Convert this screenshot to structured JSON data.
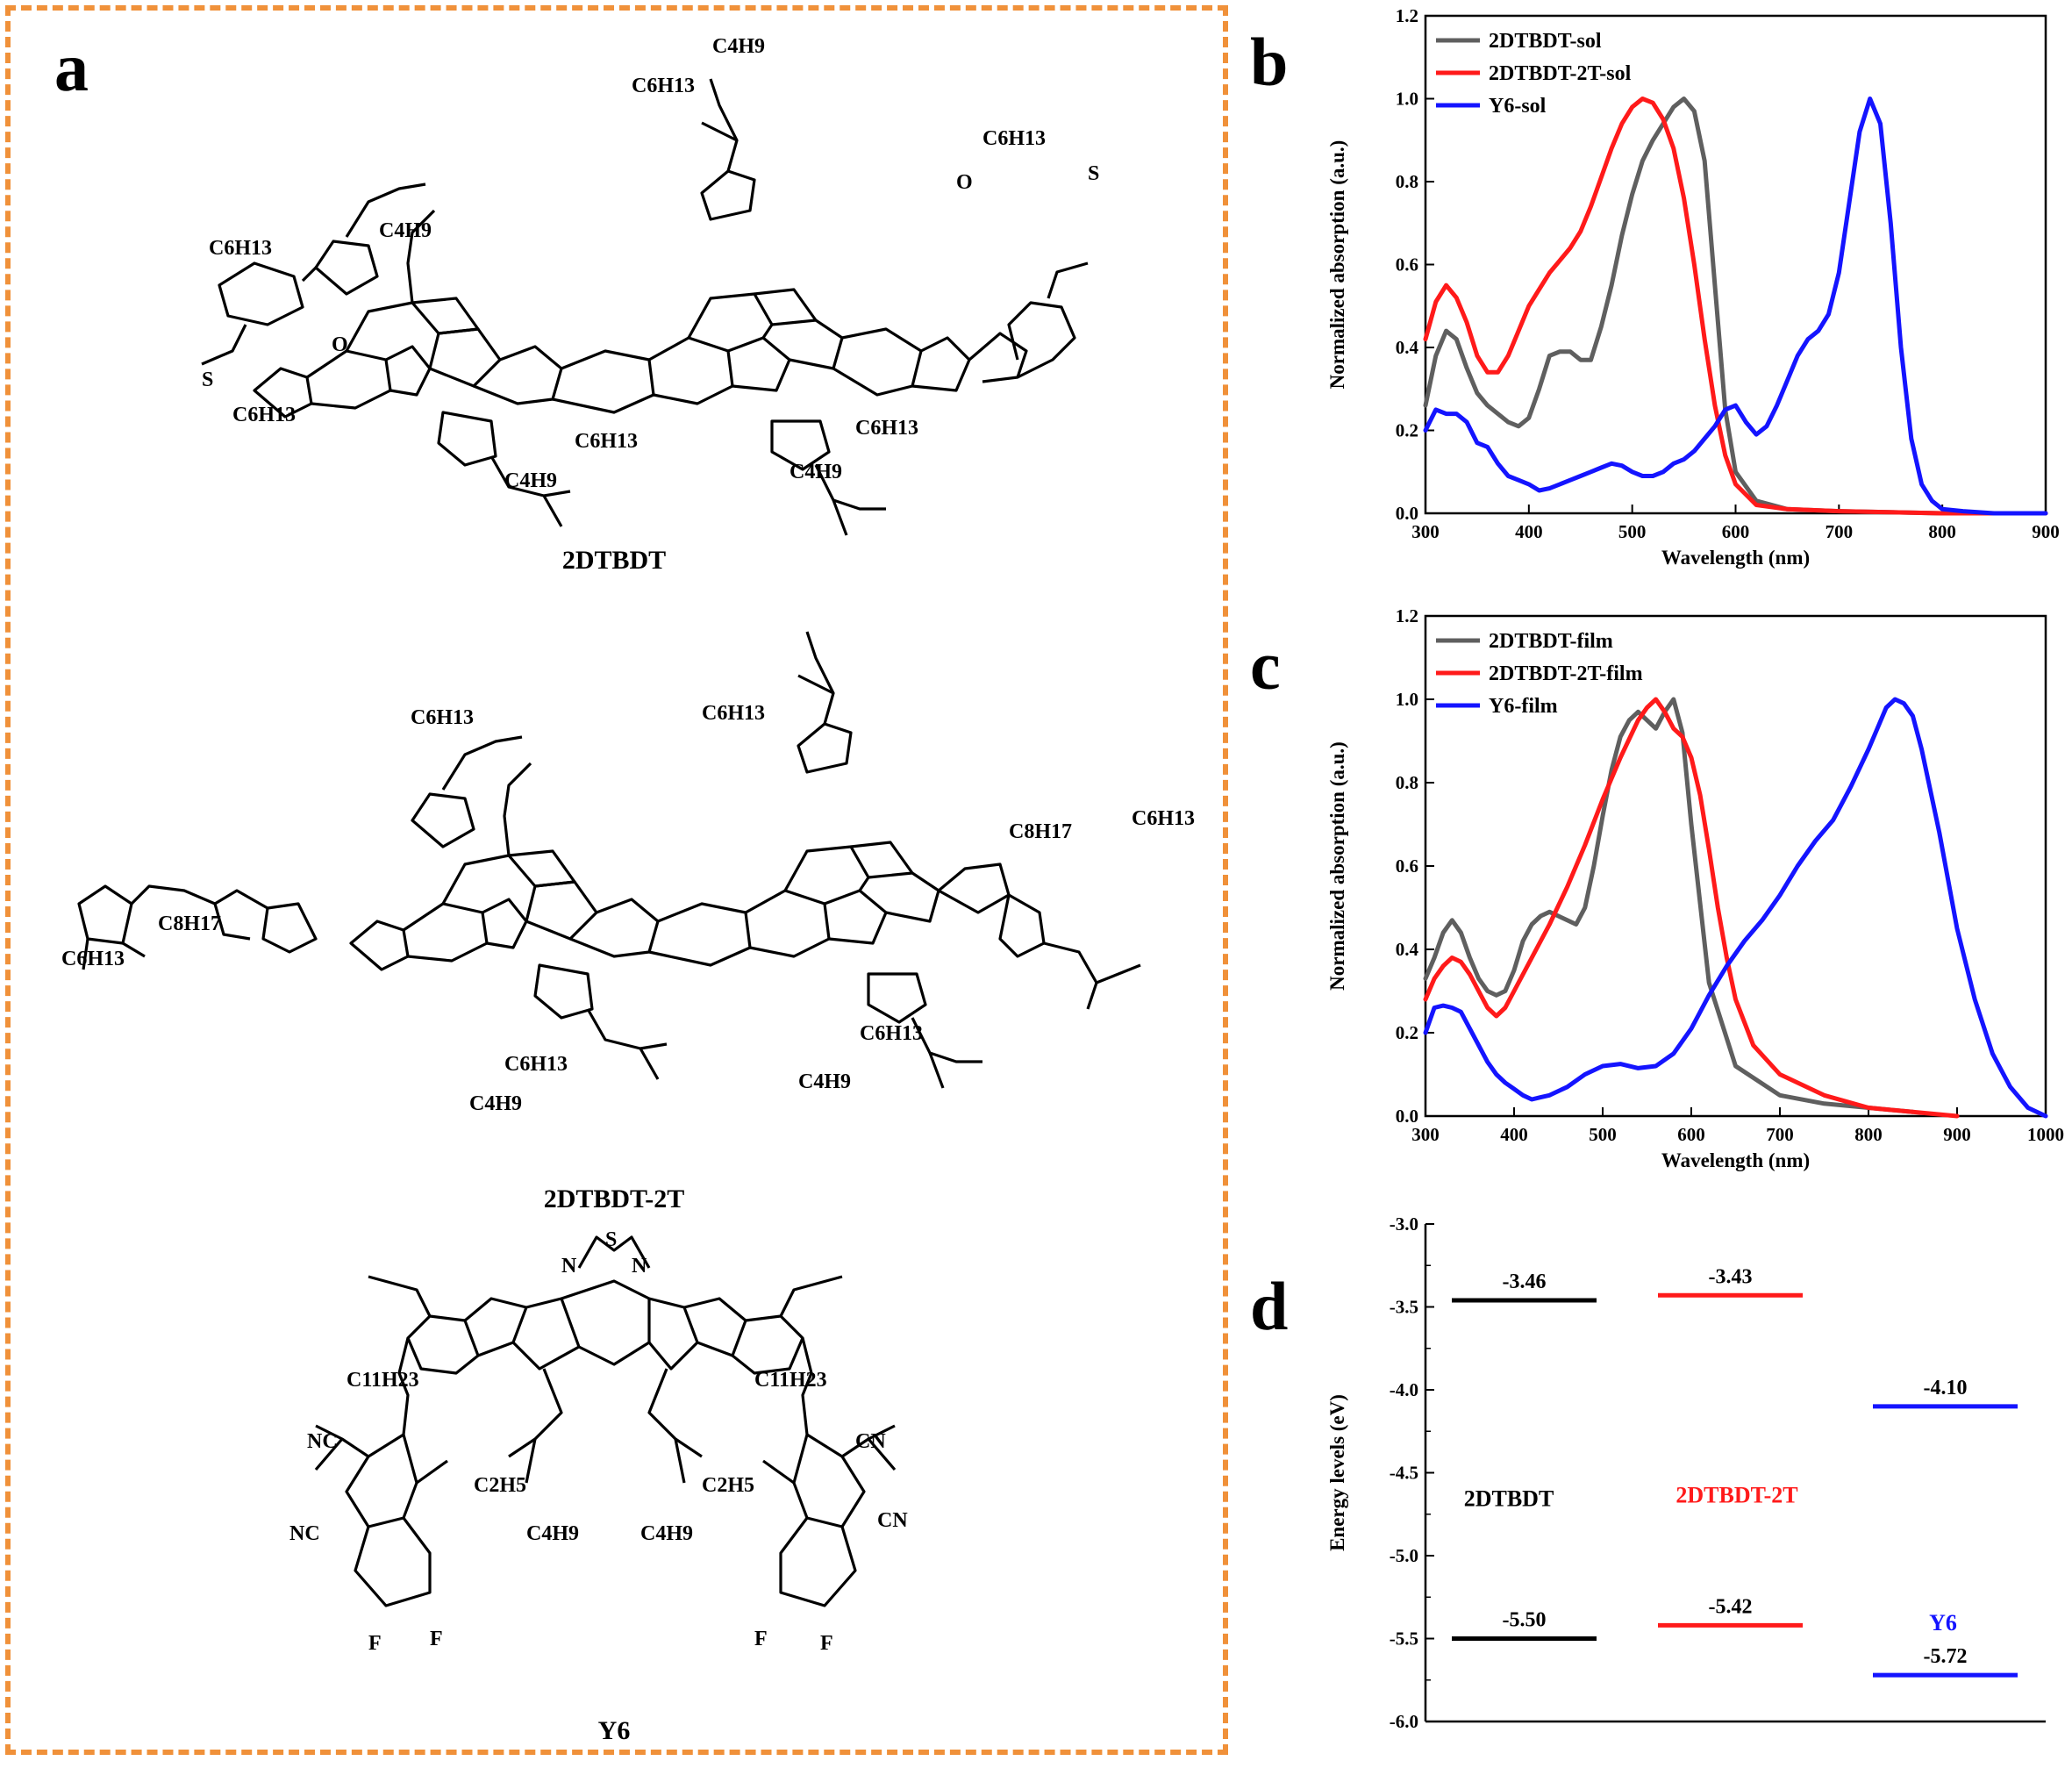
{
  "panel_labels": {
    "a": "a",
    "b": "b",
    "c": "c",
    "d": "d"
  },
  "molecules": {
    "m1": {
      "name": "2DTBDT"
    },
    "m2": {
      "name": "2DTBDT-2T"
    },
    "m3": {
      "name": "Y6"
    }
  },
  "atom_labels": {
    "S": "S",
    "N": "N",
    "O": "O",
    "F": "F",
    "NC": "NC",
    "CN": "CN",
    "C6H13": "C6H13",
    "C4H9": "C4H9",
    "C8H17": "C8H17",
    "C11H23": "C11H23",
    "C2H5": "C2H5"
  },
  "colors": {
    "dash_border": "#F0913A",
    "gray": "#5F5F5F",
    "red": "#FF1A1A",
    "blue": "#1414FF",
    "black": "#000000"
  },
  "chart_data": [
    {
      "type": "line",
      "panel": "b",
      "xlabel": "Wavelength (nm)",
      "ylabel": "Normalized absorption (a.u.)",
      "xlim": [
        300,
        900
      ],
      "ylim": [
        0.0,
        1.2
      ],
      "xticks": [
        300,
        400,
        500,
        600,
        700,
        800,
        900
      ],
      "yticks": [
        "0.0",
        "0.2",
        "0.4",
        "0.6",
        "0.8",
        "1.0",
        "1.2"
      ],
      "legend_position": "top-left",
      "series": [
        {
          "name": "2DTBDT-sol",
          "color": "#5F5F5F",
          "x": [
            300,
            310,
            320,
            330,
            340,
            350,
            360,
            370,
            380,
            390,
            400,
            410,
            420,
            430,
            440,
            450,
            460,
            470,
            480,
            490,
            500,
            510,
            520,
            530,
            540,
            550,
            560,
            570,
            580,
            590,
            600,
            620,
            650,
            700,
            800,
            900
          ],
          "y": [
            0.26,
            0.38,
            0.44,
            0.42,
            0.35,
            0.29,
            0.26,
            0.24,
            0.22,
            0.21,
            0.23,
            0.3,
            0.38,
            0.39,
            0.39,
            0.37,
            0.37,
            0.45,
            0.55,
            0.67,
            0.77,
            0.85,
            0.9,
            0.94,
            0.98,
            1.0,
            0.97,
            0.85,
            0.55,
            0.25,
            0.1,
            0.03,
            0.01,
            0.005,
            0.0,
            0.0
          ]
        },
        {
          "name": "2DTBDT-2T-sol",
          "color": "#FF1A1A",
          "x": [
            300,
            310,
            320,
            330,
            340,
            350,
            360,
            370,
            380,
            390,
            400,
            410,
            420,
            430,
            440,
            450,
            460,
            470,
            480,
            490,
            500,
            510,
            520,
            530,
            540,
            550,
            560,
            570,
            580,
            590,
            600,
            620,
            650,
            700,
            800,
            900
          ],
          "y": [
            0.42,
            0.51,
            0.55,
            0.52,
            0.46,
            0.38,
            0.34,
            0.34,
            0.38,
            0.44,
            0.5,
            0.54,
            0.58,
            0.61,
            0.64,
            0.68,
            0.74,
            0.81,
            0.88,
            0.94,
            0.98,
            1.0,
            0.99,
            0.95,
            0.88,
            0.76,
            0.6,
            0.42,
            0.26,
            0.14,
            0.07,
            0.02,
            0.01,
            0.005,
            0.0,
            0.0
          ]
        },
        {
          "name": "Y6-sol",
          "color": "#1414FF",
          "x": [
            300,
            310,
            320,
            330,
            340,
            350,
            360,
            370,
            380,
            390,
            400,
            410,
            420,
            430,
            440,
            450,
            460,
            470,
            480,
            490,
            500,
            510,
            520,
            530,
            540,
            550,
            560,
            570,
            580,
            590,
            600,
            610,
            620,
            630,
            640,
            650,
            660,
            670,
            680,
            690,
            700,
            710,
            720,
            730,
            740,
            750,
            760,
            770,
            780,
            790,
            800,
            820,
            850,
            900
          ],
          "y": [
            0.2,
            0.25,
            0.24,
            0.24,
            0.22,
            0.17,
            0.16,
            0.12,
            0.09,
            0.08,
            0.07,
            0.055,
            0.06,
            0.07,
            0.08,
            0.09,
            0.1,
            0.11,
            0.12,
            0.115,
            0.1,
            0.09,
            0.09,
            0.1,
            0.12,
            0.13,
            0.15,
            0.18,
            0.21,
            0.25,
            0.26,
            0.22,
            0.19,
            0.21,
            0.26,
            0.32,
            0.38,
            0.42,
            0.44,
            0.48,
            0.58,
            0.75,
            0.92,
            1.0,
            0.94,
            0.7,
            0.4,
            0.18,
            0.07,
            0.03,
            0.01,
            0.005,
            0.0,
            0.0
          ]
        }
      ]
    },
    {
      "type": "line",
      "panel": "c",
      "xlabel": "Wavelength (nm)",
      "ylabel": "Normalized absorption (a.u.)",
      "xlim": [
        300,
        1000
      ],
      "ylim": [
        0.0,
        1.2
      ],
      "xticks": [
        300,
        400,
        500,
        600,
        700,
        800,
        900,
        1000
      ],
      "yticks": [
        "0.0",
        "0.2",
        "0.4",
        "0.6",
        "0.8",
        "1.0",
        "1.2"
      ],
      "legend_position": "top-left",
      "series": [
        {
          "name": "2DTBDT-film",
          "color": "#5F5F5F",
          "x": [
            300,
            310,
            320,
            330,
            340,
            350,
            360,
            370,
            380,
            390,
            400,
            410,
            420,
            430,
            440,
            450,
            460,
            470,
            480,
            490,
            500,
            510,
            520,
            530,
            540,
            550,
            560,
            570,
            580,
            590,
            600,
            620,
            650,
            700,
            750,
            800,
            850
          ],
          "y": [
            0.33,
            0.38,
            0.44,
            0.47,
            0.44,
            0.38,
            0.33,
            0.3,
            0.29,
            0.3,
            0.35,
            0.42,
            0.46,
            0.48,
            0.49,
            0.48,
            0.47,
            0.46,
            0.5,
            0.6,
            0.72,
            0.83,
            0.91,
            0.95,
            0.97,
            0.95,
            0.93,
            0.97,
            1.0,
            0.92,
            0.7,
            0.32,
            0.12,
            0.05,
            0.03,
            0.02,
            0.01
          ]
        },
        {
          "name": "2DTBDT-2T-film",
          "color": "#FF1A1A",
          "x": [
            300,
            310,
            320,
            330,
            340,
            350,
            360,
            370,
            380,
            390,
            400,
            420,
            440,
            460,
            480,
            500,
            520,
            540,
            550,
            560,
            570,
            580,
            590,
            600,
            610,
            620,
            630,
            640,
            650,
            670,
            700,
            750,
            800,
            850,
            900
          ],
          "y": [
            0.28,
            0.33,
            0.36,
            0.38,
            0.37,
            0.34,
            0.3,
            0.26,
            0.24,
            0.26,
            0.3,
            0.38,
            0.46,
            0.55,
            0.65,
            0.76,
            0.86,
            0.95,
            0.98,
            1.0,
            0.97,
            0.93,
            0.91,
            0.86,
            0.77,
            0.64,
            0.5,
            0.38,
            0.28,
            0.17,
            0.1,
            0.05,
            0.02,
            0.01,
            0.0
          ]
        },
        {
          "name": "Y6-film",
          "color": "#1414FF",
          "x": [
            300,
            310,
            320,
            330,
            340,
            350,
            360,
            370,
            380,
            390,
            400,
            410,
            420,
            430,
            440,
            450,
            460,
            480,
            500,
            520,
            540,
            560,
            580,
            600,
            620,
            640,
            660,
            680,
            700,
            720,
            740,
            760,
            780,
            800,
            810,
            820,
            830,
            840,
            850,
            860,
            880,
            900,
            920,
            940,
            960,
            980,
            1000
          ],
          "y": [
            0.2,
            0.26,
            0.265,
            0.26,
            0.25,
            0.21,
            0.17,
            0.13,
            0.1,
            0.08,
            0.065,
            0.05,
            0.04,
            0.045,
            0.05,
            0.06,
            0.07,
            0.1,
            0.12,
            0.125,
            0.115,
            0.12,
            0.15,
            0.21,
            0.29,
            0.36,
            0.42,
            0.47,
            0.53,
            0.6,
            0.66,
            0.71,
            0.79,
            0.88,
            0.93,
            0.98,
            1.0,
            0.99,
            0.96,
            0.88,
            0.68,
            0.45,
            0.28,
            0.15,
            0.07,
            0.02,
            0.0
          ]
        }
      ]
    },
    {
      "type": "energy_levels",
      "panel": "d",
      "ylabel": "Energy levels (eV)",
      "ylim": [
        -6.0,
        -3.0
      ],
      "yticks": [
        "-3.0",
        "-3.5",
        "-4.0",
        "-4.5",
        "-5.0",
        "-5.5",
        "-6.0"
      ],
      "materials": [
        {
          "name": "2DTBDT",
          "color": "#000000",
          "lumo": -3.46,
          "homo": -5.5,
          "lumo_label": "-3.46",
          "homo_label": "-5.50"
        },
        {
          "name": "2DTBDT-2T",
          "color": "#FF1A1A",
          "lumo": -3.43,
          "homo": -5.42,
          "lumo_label": "-3.43",
          "homo_label": "-5.42"
        },
        {
          "name": "Y6",
          "color": "#1414FF",
          "lumo": -4.1,
          "homo": -5.72,
          "lumo_label": "-4.10",
          "homo_label": "-5.72"
        }
      ]
    }
  ]
}
